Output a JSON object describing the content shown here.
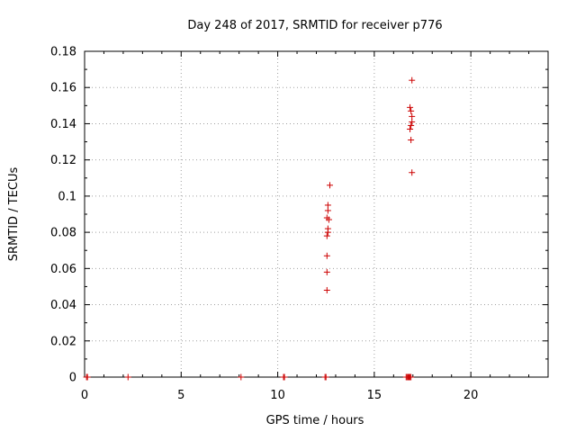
{
  "chart_data": {
    "type": "scatter",
    "title": "Day 248 of 2017, SRMTID for receiver p776",
    "xlabel": "GPS time / hours",
    "ylabel": "SRMTID / TECUs",
    "xlim": [
      0,
      24
    ],
    "ylim": [
      0,
      0.18
    ],
    "xticks": [
      0,
      5,
      10,
      15,
      20
    ],
    "yticks": [
      0,
      0.02,
      0.04,
      0.06,
      0.08,
      0.1,
      0.12,
      0.14,
      0.16,
      0.18
    ],
    "grid": true,
    "marker": "+",
    "color": "#cc0000",
    "series": [
      {
        "name": "SRMTID",
        "points": [
          [
            0.1,
            0
          ],
          [
            0.15,
            0
          ],
          [
            2.25,
            0
          ],
          [
            8.1,
            0
          ],
          [
            10.3,
            0
          ],
          [
            10.35,
            0
          ],
          [
            12.45,
            0
          ],
          [
            12.5,
            0
          ],
          [
            16.65,
            0
          ],
          [
            16.7,
            0
          ],
          [
            16.75,
            0
          ],
          [
            16.8,
            0
          ],
          [
            16.85,
            0
          ],
          [
            16.9,
            0
          ],
          [
            12.55,
            0.048
          ],
          [
            12.55,
            0.058
          ],
          [
            12.55,
            0.067
          ],
          [
            12.55,
            0.078
          ],
          [
            12.6,
            0.08
          ],
          [
            12.6,
            0.082
          ],
          [
            12.55,
            0.088
          ],
          [
            12.65,
            0.087
          ],
          [
            12.6,
            0.092
          ],
          [
            12.6,
            0.095
          ],
          [
            12.7,
            0.106
          ],
          [
            16.95,
            0.113
          ],
          [
            16.9,
            0.131
          ],
          [
            16.85,
            0.137
          ],
          [
            16.9,
            0.139
          ],
          [
            16.95,
            0.141
          ],
          [
            16.95,
            0.144
          ],
          [
            16.9,
            0.147
          ],
          [
            16.85,
            0.149
          ],
          [
            16.95,
            0.164
          ]
        ]
      }
    ]
  }
}
